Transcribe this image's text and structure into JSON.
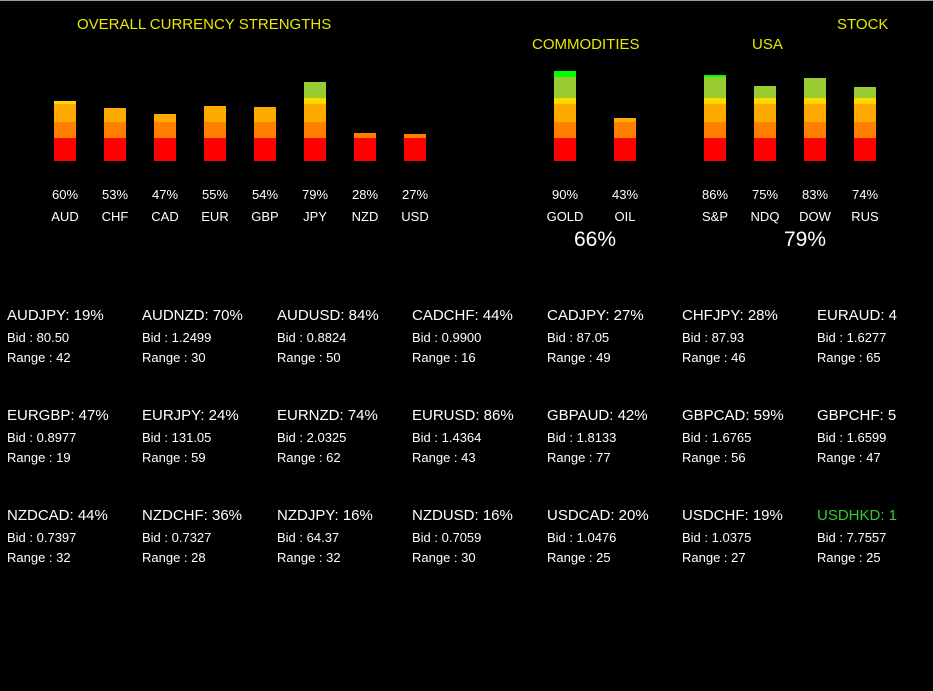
{
  "titles": {
    "overall": "OVERALL CURRENCY STRENGTHS",
    "commodities": "COMMODITIES",
    "stock": "STOCK",
    "usa": "USA"
  },
  "colors": {
    "level1": "#ff0000",
    "level2": "#ff8000",
    "level3": "#ffaa00",
    "level4": "#ffd700",
    "level5": "#99cc33",
    "level6": "#00ff00",
    "highlight_text": "#33cc33",
    "title_text": "#e8e800"
  },
  "chart_data": [
    {
      "type": "bar",
      "title": "OVERALL CURRENCY STRENGTHS",
      "categories": [
        "AUD",
        "CHF",
        "CAD",
        "EUR",
        "GBP",
        "JPY",
        "NZD",
        "USD"
      ],
      "values": [
        60,
        53,
        47,
        55,
        54,
        79,
        28,
        27
      ],
      "value_labels": [
        "60%",
        "53%",
        "47%",
        "55%",
        "54%",
        "79%",
        "28%",
        "27%"
      ],
      "ylim": [
        0,
        100
      ]
    },
    {
      "type": "bar",
      "title": "COMMODITIES",
      "categories": [
        "GOLD",
        "OIL"
      ],
      "values": [
        90,
        43
      ],
      "value_labels": [
        "90%",
        "43%"
      ],
      "aggregate": "66%",
      "ylim": [
        0,
        100
      ]
    },
    {
      "type": "bar",
      "title": "USA",
      "categories": [
        "S&P",
        "NDQ",
        "DOW",
        "RUS"
      ],
      "values": [
        86,
        75,
        83,
        74
      ],
      "value_labels": [
        "86%",
        "75%",
        "83%",
        "74%"
      ],
      "aggregate": "79%",
      "ylim": [
        0,
        100
      ]
    }
  ],
  "pairs": [
    {
      "name": "AUDJPY: 19%",
      "bid": "Bid : 80.50",
      "range": "Range : 42"
    },
    {
      "name": "AUDNZD: 70%",
      "bid": "Bid : 1.2499",
      "range": "Range : 30"
    },
    {
      "name": "AUDUSD: 84%",
      "bid": "Bid : 0.8824",
      "range": "Range : 50"
    },
    {
      "name": "CADCHF: 44%",
      "bid": "Bid : 0.9900",
      "range": "Range : 16"
    },
    {
      "name": "CADJPY: 27%",
      "bid": "Bid : 87.05",
      "range": "Range : 49"
    },
    {
      "name": "CHFJPY: 28%",
      "bid": "Bid : 87.93",
      "range": "Range : 46"
    },
    {
      "name": "EURAUD: 4",
      "bid": "Bid : 1.6277",
      "range": "Range : 65"
    },
    {
      "name": "EURGBP: 47%",
      "bid": "Bid : 0.8977",
      "range": "Range : 19"
    },
    {
      "name": "EURJPY: 24%",
      "bid": "Bid : 131.05",
      "range": "Range : 59"
    },
    {
      "name": "EURNZD: 74%",
      "bid": "Bid : 2.0325",
      "range": "Range : 62"
    },
    {
      "name": "EURUSD: 86%",
      "bid": "Bid : 1.4364",
      "range": "Range : 43"
    },
    {
      "name": "GBPAUD: 42%",
      "bid": "Bid : 1.8133",
      "range": "Range : 77"
    },
    {
      "name": "GBPCAD: 59%",
      "bid": "Bid : 1.6765",
      "range": "Range : 56"
    },
    {
      "name": "GBPCHF: 5",
      "bid": "Bid : 1.6599",
      "range": "Range : 47"
    },
    {
      "name": "NZDCAD: 44%",
      "bid": "Bid : 0.7397",
      "range": "Range : 32"
    },
    {
      "name": "NZDCHF: 36%",
      "bid": "Bid : 0.7327",
      "range": "Range : 28"
    },
    {
      "name": "NZDJPY: 16%",
      "bid": "Bid : 64.37",
      "range": "Range : 32"
    },
    {
      "name": "NZDUSD: 16%",
      "bid": "Bid : 0.7059",
      "range": "Range : 30"
    },
    {
      "name": "USDCAD: 20%",
      "bid": "Bid : 1.0476",
      "range": "Range : 25"
    },
    {
      "name": "USDCHF: 19%",
      "bid": "Bid : 1.0375",
      "range": "Range : 27"
    },
    {
      "name": "USDHKD: 1",
      "bid": "Bid : 7.7557",
      "range": "Range : 25",
      "highlight": true
    }
  ]
}
